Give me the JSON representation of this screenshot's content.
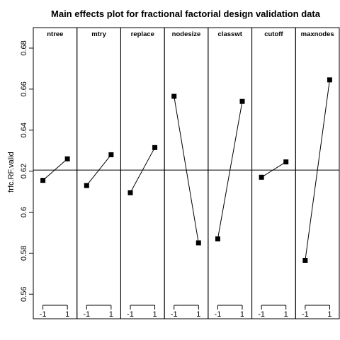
{
  "chart_data": {
    "type": "line",
    "title": "Main effects plot for fractional factorial design validation data",
    "ylabel": "frfc.RF.valid",
    "xlabel": "",
    "ylim": [
      0.548,
      0.69
    ],
    "y_ticks": [
      0.56,
      0.58,
      0.6,
      0.62,
      0.64,
      0.66,
      0.68
    ],
    "y_tick_labels": [
      "0.56",
      "0.58",
      "0.6",
      "0.62",
      "0.64",
      "0.66",
      "0.68"
    ],
    "x_levels": [
      "-1",
      "1"
    ],
    "grand_mean": 0.6205,
    "grid": false,
    "factors": [
      {
        "name": "ntree",
        "values": [
          0.6155,
          0.626
        ]
      },
      {
        "name": "mtry",
        "values": [
          0.613,
          0.628
        ]
      },
      {
        "name": "replace",
        "values": [
          0.6095,
          0.6315
        ]
      },
      {
        "name": "nodesize",
        "values": [
          0.6565,
          0.585
        ]
      },
      {
        "name": "classwt",
        "values": [
          0.587,
          0.654
        ]
      },
      {
        "name": "cutoff",
        "values": [
          0.617,
          0.6245
        ]
      },
      {
        "name": "maxnodes",
        "values": [
          0.5765,
          0.6645
        ]
      }
    ],
    "colors": {
      "line": "#000000",
      "marker": "#000000",
      "background": "#ffffff"
    }
  }
}
